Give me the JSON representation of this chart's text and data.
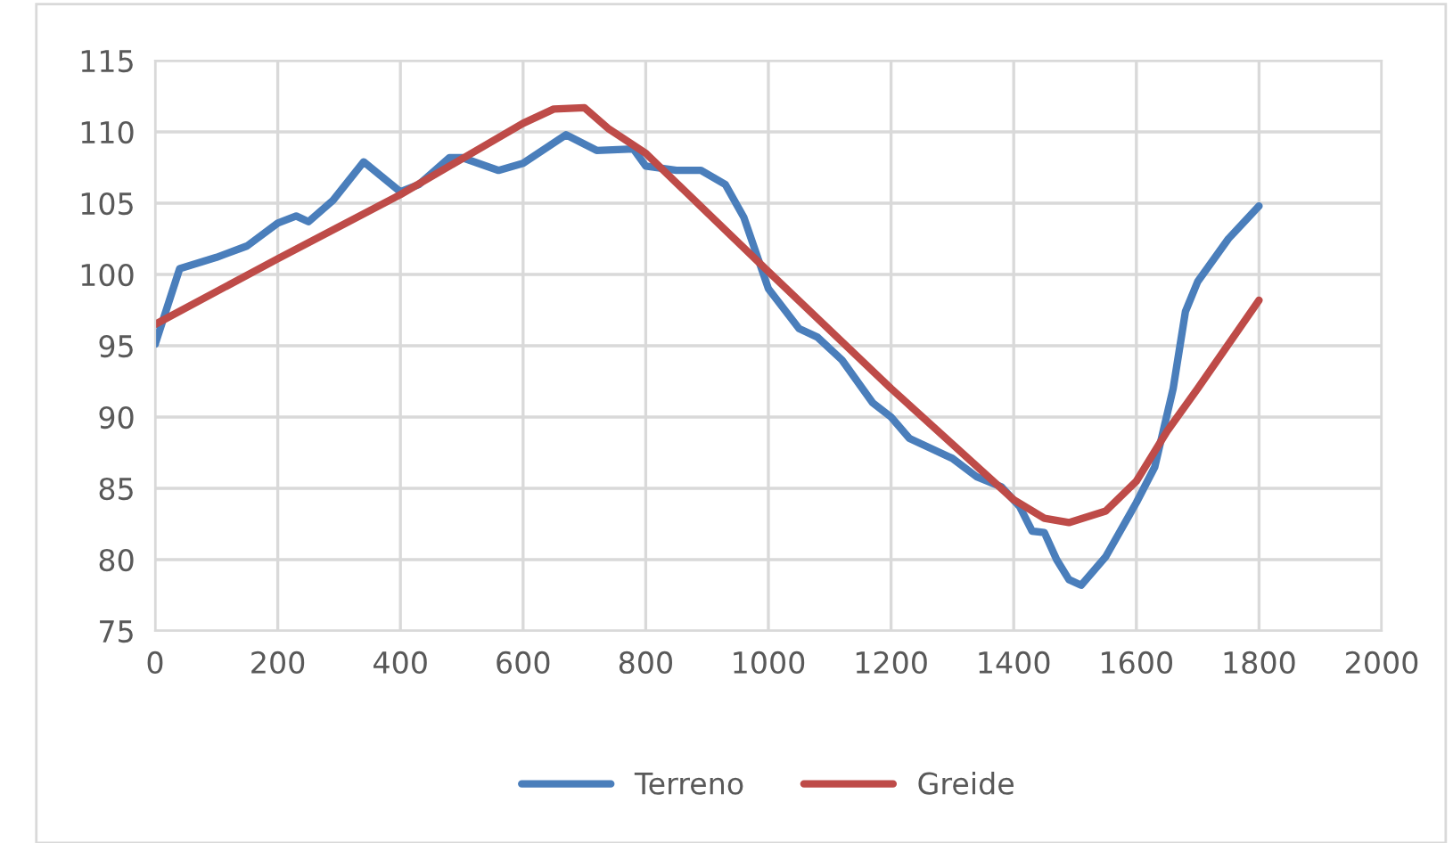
{
  "chart_data": {
    "type": "line",
    "xlim": [
      0,
      2000
    ],
    "xticks": [
      0,
      200,
      400,
      600,
      800,
      1000,
      1200,
      1400,
      1600,
      1800,
      2000
    ],
    "ylim": [
      75,
      115
    ],
    "yticks": [
      75,
      80,
      85,
      90,
      95,
      100,
      105,
      110,
      115
    ],
    "grid": true,
    "legend": "bottom",
    "marker": "none",
    "line_style": "solid",
    "series": [
      {
        "name": "Terreno",
        "color": "#4a7ebb",
        "x": [
          0,
          40,
          100,
          150,
          200,
          230,
          250,
          290,
          340,
          400,
          430,
          480,
          500,
          560,
          600,
          670,
          720,
          780,
          800,
          850,
          890,
          930,
          960,
          1000,
          1050,
          1080,
          1120,
          1170,
          1200,
          1230,
          1300,
          1340,
          1380,
          1410,
          1430,
          1450,
          1470,
          1490,
          1510,
          1550,
          1600,
          1630,
          1660,
          1680,
          1700,
          1750,
          1800
        ],
        "values": [
          95.1,
          100.4,
          101.2,
          102,
          103.6,
          104.1,
          103.7,
          105.2,
          107.9,
          105.8,
          106.3,
          108.2,
          108.2,
          107.3,
          107.8,
          109.8,
          108.7,
          108.8,
          107.6,
          107.3,
          107.3,
          106.3,
          104,
          99,
          96.2,
          95.6,
          94,
          91,
          90,
          88.5,
          87.1,
          85.8,
          85.1,
          83.7,
          82,
          81.9,
          80,
          78.6,
          78.2,
          80.2,
          84,
          86.5,
          92,
          97.4,
          99.5,
          102.5,
          104.8
        ]
      },
      {
        "name": "Greide",
        "color": "#be4b48",
        "x": [
          0,
          200,
          400,
          600,
          650,
          700,
          740,
          800,
          1000,
          1200,
          1400,
          1450,
          1490,
          1550,
          1600,
          1650,
          1700,
          1800
        ],
        "values": [
          96.5,
          101.1,
          105.6,
          110.6,
          111.6,
          111.7,
          110.2,
          108.5,
          100.2,
          92,
          84.2,
          82.9,
          82.6,
          83.4,
          85.5,
          89,
          92,
          98.2
        ]
      }
    ]
  }
}
